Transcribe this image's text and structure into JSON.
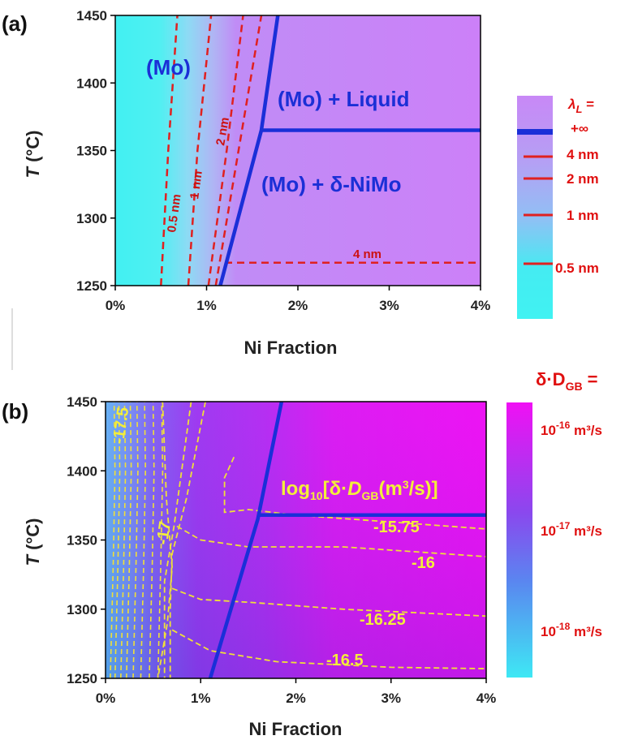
{
  "chart_data": [
    {
      "panel": "(a)",
      "type": "heatmap",
      "xlabel": "Ni Fraction",
      "ylabel_italic": "T",
      "ylabel_rest": " (°C)",
      "xlim": [
        0,
        4
      ],
      "ylim": [
        1250,
        1450
      ],
      "x_ticks": [
        "0%",
        "1%",
        "2%",
        "3%",
        "4%"
      ],
      "y_ticks": [
        "1250",
        "1300",
        "1350",
        "1400",
        "1450"
      ],
      "regions": [
        "(Mo)",
        "(Mo) + Liquid",
        "(Mo) + δ-NiMo"
      ],
      "solvus": [
        [
          1.15,
          1250
        ],
        [
          1.6,
          1365
        ],
        [
          1.78,
          1450
        ]
      ],
      "liquid_boundary": {
        "x": [
          1.6,
          4.0
        ],
        "y": 1365
      },
      "contour_lines": [
        {
          "label": "0.5 nm",
          "points": [
            [
              0.5,
              1250
            ],
            [
              0.58,
              1350
            ],
            [
              0.68,
              1450
            ]
          ]
        },
        {
          "label": "1 nm",
          "points": [
            [
              0.8,
              1250
            ],
            [
              0.9,
              1350
            ],
            [
              1.05,
              1450
            ]
          ]
        },
        {
          "label": "2 nm",
          "points": [
            [
              1.02,
              1250
            ],
            [
              1.22,
              1350
            ],
            [
              1.4,
              1450
            ]
          ]
        },
        {
          "label": "",
          "points": [
            [
              1.1,
              1250
            ],
            [
              1.4,
              1370
            ],
            [
              1.6,
              1450
            ]
          ]
        }
      ],
      "horizontal_line": {
        "label": "4 nm",
        "x": [
          1.2,
          4.0
        ],
        "y": 1267
      },
      "colorbar": {
        "title_symbol": "λ",
        "title_sub": "L",
        "title_eq": " =",
        "labels": [
          "+∞",
          "4 nm",
          "2 nm",
          "1 nm",
          "0.5 nm"
        ]
      },
      "colors": {
        "low": "#40f2f2",
        "high": "#cc80f8",
        "boundary": "#1a2fd8",
        "contour": "#e02020"
      }
    },
    {
      "panel": "(b)",
      "type": "heatmap",
      "xlabel": "Ni Fraction",
      "ylabel_italic": "T",
      "ylabel_rest": " (°C)",
      "xlim": [
        0,
        4
      ],
      "ylim": [
        1250,
        1450
      ],
      "x_ticks": [
        "0%",
        "1%",
        "2%",
        "3%",
        "4%"
      ],
      "y_ticks": [
        "1250",
        "1300",
        "1350",
        "1400",
        "1450"
      ],
      "annotation": "log₁₀[δ·D_GB(m³/s)]",
      "solvus": [
        [
          1.1,
          1250
        ],
        [
          1.6,
          1365
        ],
        [
          1.85,
          1450
        ]
      ],
      "liquid_boundary": {
        "x": [
          1.6,
          4.0
        ],
        "y": 1368
      },
      "contour_labels": [
        "-17.5",
        "-17",
        "-15.75",
        "-16",
        "-16.25",
        "-16.5"
      ],
      "colorbar": {
        "title": "δ·D",
        "title_sub": "GB",
        "title_eq": " =",
        "ticks": [
          {
            "base": "10",
            "exp": "-16",
            "unit": " m³/s"
          },
          {
            "base": "10",
            "exp": "-17",
            "unit": " m³/s"
          },
          {
            "base": "10",
            "exp": "-18",
            "unit": " m³/s"
          }
        ]
      },
      "colors": {
        "low": "#40e6f4",
        "mid": "#8a3cf0",
        "high": "#ea10f2",
        "boundary": "#1a2fd8",
        "contour": "#f0e038"
      }
    }
  ]
}
